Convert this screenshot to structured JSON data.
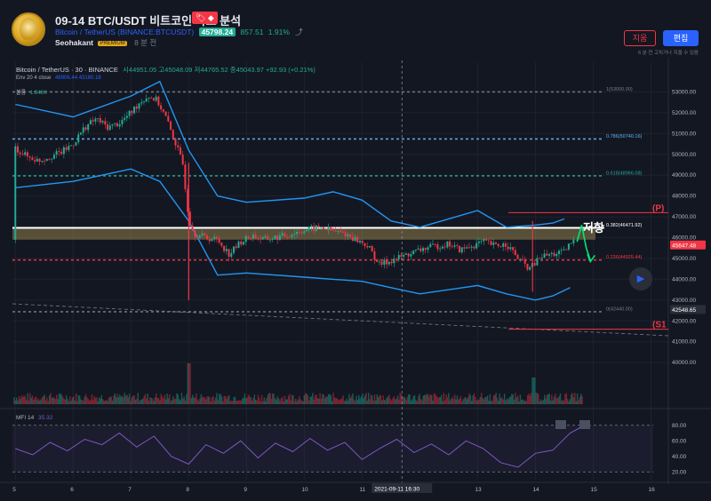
{
  "header": {
    "title": "09-14 BTC/USDT 비트코인 차트 분석",
    "tag_badge": "🏷 ◆",
    "symbol_name": "Bitcoin / TetherUS",
    "symbol_code": "(BINANCE:BTCUSDT)",
    "price": "45798.24",
    "change_abs": "857.51",
    "change_pct": "1.91%",
    "share_icon": "share-icon",
    "author": "Seohakant",
    "premium_badge": "PREMIUM",
    "time_ago": "8 분 전",
    "delete_label": "지움",
    "edit_label": "편집",
    "pub_note": "6 분 전 고치거나 지울 수 있음"
  },
  "legend": {
    "symbol": "Bitcoin / TetherUS · 30 · BINANCE",
    "ohlc": "시44951.05 고45048.09 저44765.52 종45043.97 +92.93 (+0.21%)",
    "env_label": "Env 20 4 close",
    "env_values": "46906.44 43180.18",
    "vol_label": "볼륨",
    "vol_value": "1.348K",
    "mfi_label": "MFI 14",
    "mfi_value": "35.32"
  },
  "annotations": {
    "resist_text": "저항",
    "p_label": "(P)",
    "s1_label": "(S1"
  },
  "chart_data": {
    "type": "candlestick",
    "symbol": "BTCUSDT",
    "interval": "30",
    "ylim": [
      38000,
      54000
    ],
    "y_ticks": [
      40000,
      41000,
      42000,
      43000,
      44000,
      45000,
      46000,
      47000,
      48000,
      49000,
      50000,
      51000,
      52000,
      53000
    ],
    "x_labels": [
      {
        "day": 5,
        "label": "5"
      },
      {
        "day": 6,
        "label": "6"
      },
      {
        "day": 7,
        "label": "7"
      },
      {
        "day": 8,
        "label": "8"
      },
      {
        "day": 9,
        "label": "9"
      },
      {
        "day": 10,
        "label": "10"
      },
      {
        "day": 11,
        "label": "11"
      },
      {
        "day": 13,
        "label": "13"
      },
      {
        "day": 14,
        "label": "14"
      },
      {
        "day": 15,
        "label": "15"
      },
      {
        "day": 16,
        "label": "16"
      }
    ],
    "crosshair_label": "2021-09-11   16:30",
    "crosshair_day": 11.69,
    "price_path": [
      [
        5.0,
        50300
      ],
      [
        5.2,
        49900
      ],
      [
        5.4,
        49700
      ],
      [
        5.6,
        49900
      ],
      [
        5.8,
        50100
      ],
      [
        6.0,
        50500
      ],
      [
        6.2,
        51300
      ],
      [
        6.4,
        51700
      ],
      [
        6.6,
        51300
      ],
      [
        6.8,
        51500
      ],
      [
        7.0,
        52000
      ],
      [
        7.15,
        52500
      ],
      [
        7.3,
        52800
      ],
      [
        7.45,
        52600
      ],
      [
        7.6,
        51800
      ],
      [
        7.75,
        50700
      ],
      [
        7.9,
        49500
      ],
      [
        8.0,
        46900
      ],
      [
        8.1,
        46200
      ],
      [
        8.3,
        46000
      ],
      [
        8.5,
        45900
      ],
      [
        8.7,
        45200
      ],
      [
        8.9,
        45800
      ],
      [
        9.1,
        46100
      ],
      [
        9.3,
        45900
      ],
      [
        9.5,
        46000
      ],
      [
        9.7,
        46100
      ],
      [
        9.9,
        46300
      ],
      [
        10.1,
        46400
      ],
      [
        10.3,
        46500
      ],
      [
        10.5,
        46300
      ],
      [
        10.7,
        46200
      ],
      [
        10.9,
        45900
      ],
      [
        11.1,
        45600
      ],
      [
        11.3,
        44700
      ],
      [
        11.5,
        44900
      ],
      [
        11.7,
        45100
      ],
      [
        11.9,
        45300
      ],
      [
        12.1,
        45500
      ],
      [
        12.3,
        45600
      ],
      [
        12.5,
        45700
      ],
      [
        12.7,
        45400
      ],
      [
        12.9,
        45600
      ],
      [
        13.1,
        45800
      ],
      [
        13.3,
        45600
      ],
      [
        13.5,
        45700
      ],
      [
        13.7,
        45000
      ],
      [
        13.9,
        44500
      ],
      [
        14.0,
        44800
      ],
      [
        14.1,
        45100
      ],
      [
        14.3,
        45200
      ],
      [
        14.5,
        45300
      ],
      [
        14.6,
        45700
      ],
      [
        14.7,
        45900
      ]
    ],
    "envelope_upper": [
      [
        5.0,
        52400
      ],
      [
        6.0,
        51800
      ],
      [
        7.0,
        52800
      ],
      [
        7.5,
        53500
      ],
      [
        8.0,
        50200
      ],
      [
        8.5,
        48000
      ],
      [
        9.0,
        47700
      ],
      [
        10.0,
        47900
      ],
      [
        10.5,
        48200
      ],
      [
        11.0,
        47800
      ],
      [
        11.5,
        46800
      ],
      [
        12.0,
        46500
      ],
      [
        12.5,
        46900
      ],
      [
        13.0,
        47300
      ],
      [
        13.5,
        46500
      ],
      [
        14.0,
        46600
      ],
      [
        14.3,
        46700
      ],
      [
        14.5,
        46900
      ]
    ],
    "envelope_lower": [
      [
        5.0,
        48400
      ],
      [
        6.0,
        48700
      ],
      [
        7.0,
        49300
      ],
      [
        7.5,
        48700
      ],
      [
        8.0,
        46800
      ],
      [
        8.5,
        44200
      ],
      [
        9.0,
        44300
      ],
      [
        10.0,
        44100
      ],
      [
        10.5,
        44000
      ],
      [
        11.0,
        43900
      ],
      [
        11.5,
        43600
      ],
      [
        12.0,
        43300
      ],
      [
        12.5,
        43500
      ],
      [
        13.0,
        43700
      ],
      [
        13.5,
        43300
      ],
      [
        14.0,
        43000
      ],
      [
        14.3,
        43200
      ],
      [
        14.6,
        43600
      ]
    ],
    "fib_levels": [
      {
        "label": "1(53000.00)",
        "price": 53000,
        "color": "#787b86"
      },
      {
        "label": "0.786(50740.16)",
        "price": 50740.16,
        "color": "#64b5f6"
      },
      {
        "label": "0.618(48966.08)",
        "price": 48966.08,
        "color": "#26a69a"
      },
      {
        "label": "0.382(46471.92)",
        "price": 46471.92,
        "color": "#ffffff"
      },
      {
        "label": "0.236(44925.44)",
        "price": 44925.44,
        "color": "#f23645"
      },
      {
        "label": "0(42440.00)",
        "price": 42440,
        "color": "#787b86"
      }
    ],
    "resistance_zone": [
      45900,
      46500
    ],
    "pivot_p": 47200,
    "pivot_s1": 41600,
    "price_labels": [
      {
        "label": "45647.48",
        "price": 45647.48,
        "bg": "#f23645"
      },
      {
        "label": "42548.65",
        "price": 42548.65,
        "bg": "#2a2e39"
      }
    ],
    "volume_spike_day": 8.0,
    "mfi": {
      "ylim": [
        10,
        90
      ],
      "y_ticks": [
        20,
        40,
        60,
        80
      ],
      "overbought": 80,
      "oversold": 20,
      "values": [
        [
          5.0,
          50
        ],
        [
          5.3,
          42
        ],
        [
          5.6,
          58
        ],
        [
          5.9,
          47
        ],
        [
          6.2,
          62
        ],
        [
          6.5,
          55
        ],
        [
          6.8,
          70
        ],
        [
          7.1,
          52
        ],
        [
          7.4,
          66
        ],
        [
          7.7,
          40
        ],
        [
          8.0,
          30
        ],
        [
          8.3,
          55
        ],
        [
          8.6,
          44
        ],
        [
          8.9,
          60
        ],
        [
          9.2,
          38
        ],
        [
          9.5,
          57
        ],
        [
          9.8,
          46
        ],
        [
          10.1,
          63
        ],
        [
          10.4,
          48
        ],
        [
          10.7,
          58
        ],
        [
          11.0,
          36
        ],
        [
          11.3,
          50
        ],
        [
          11.6,
          62
        ],
        [
          11.9,
          45
        ],
        [
          12.2,
          56
        ],
        [
          12.5,
          42
        ],
        [
          12.8,
          60
        ],
        [
          13.1,
          50
        ],
        [
          13.4,
          32
        ],
        [
          13.7,
          26
        ],
        [
          14.0,
          44
        ],
        [
          14.3,
          48
        ],
        [
          14.6,
          70
        ],
        [
          14.8,
          78
        ]
      ]
    }
  }
}
